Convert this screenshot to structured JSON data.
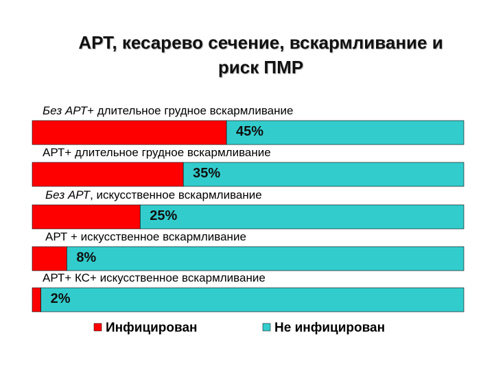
{
  "title": {
    "line1": "АРТ, кесарево сечение, вскармливание и",
    "line2": "риск ПМР"
  },
  "chart_data": {
    "type": "bar",
    "orientation": "horizontal",
    "stacked": true,
    "categories": [
      {
        "italic": "Без АРТ",
        "rest": "+ длительное грудное вскармливание"
      },
      {
        "italic": "",
        "rest": "АРТ+ длительное грудное вскармливание"
      },
      {
        "italic": "Без АРТ",
        "rest": ", искусственное вскармливание"
      },
      {
        "italic": "",
        "rest": "АРТ + искусственное вскармливание"
      },
      {
        "italic": "",
        "rest": "АРТ+ КС+ искусственное вскармливание"
      }
    ],
    "series": [
      {
        "name": "Инфицирован",
        "color": "#ff0000",
        "values": [
          45,
          35,
          25,
          8,
          2
        ]
      },
      {
        "name": "Не инфицирован",
        "color": "#33cccc",
        "values": [
          55,
          65,
          75,
          92,
          98
        ]
      }
    ],
    "value_labels": [
      "45%",
      "35%",
      "25%",
      "8%",
      "2%"
    ],
    "xlim": [
      0,
      100
    ],
    "grid": false,
    "legend_position": "bottom"
  }
}
